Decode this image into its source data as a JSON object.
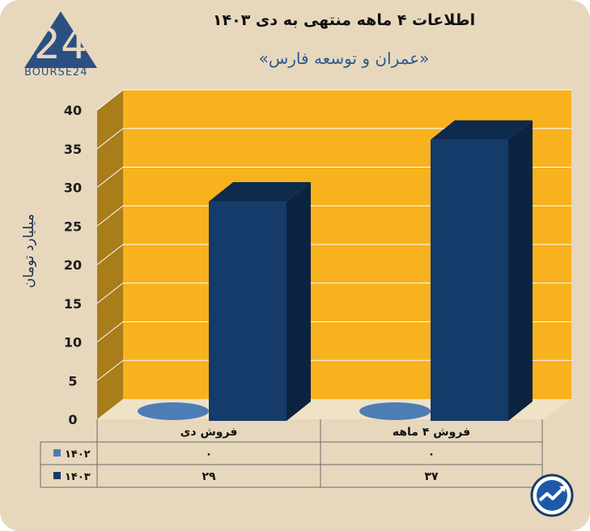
{
  "header": {
    "brand": "BOURSE24",
    "title": "اطلاعات ۴ ماهه منتهی به دی ۱۴۰۳",
    "subtitle": "«عمران و توسعه فارس»"
  },
  "chart_data": {
    "type": "bar",
    "ylabel": "میلیارد تومان",
    "ylim": [
      0,
      40
    ],
    "yticks": [
      0,
      5,
      10,
      15,
      20,
      25,
      30,
      35,
      40
    ],
    "ytick_labels": [
      "0",
      "5",
      "10",
      "15",
      "20",
      "25",
      "30",
      "35",
      "40"
    ],
    "categories": [
      "فروش دی",
      "فروش ۴ ماهه"
    ],
    "series": [
      {
        "name": "۱۴۰۲",
        "values": [
          0,
          0
        ],
        "value_labels": [
          "۰",
          "۰"
        ],
        "color": "#4d7db5"
      },
      {
        "name": "۱۴۰۳",
        "values": [
          29,
          37
        ],
        "value_labels": [
          "۲۹",
          "۳۷"
        ],
        "color": "#143b69"
      }
    ],
    "colors": {
      "wall": "#f8b21d",
      "side_wall": "#a87d1a",
      "floor": "#efe2c6",
      "bar_top": "#0e2a4d",
      "bar_side": "#0c2440"
    },
    "grid": true,
    "legend": "table-below"
  }
}
